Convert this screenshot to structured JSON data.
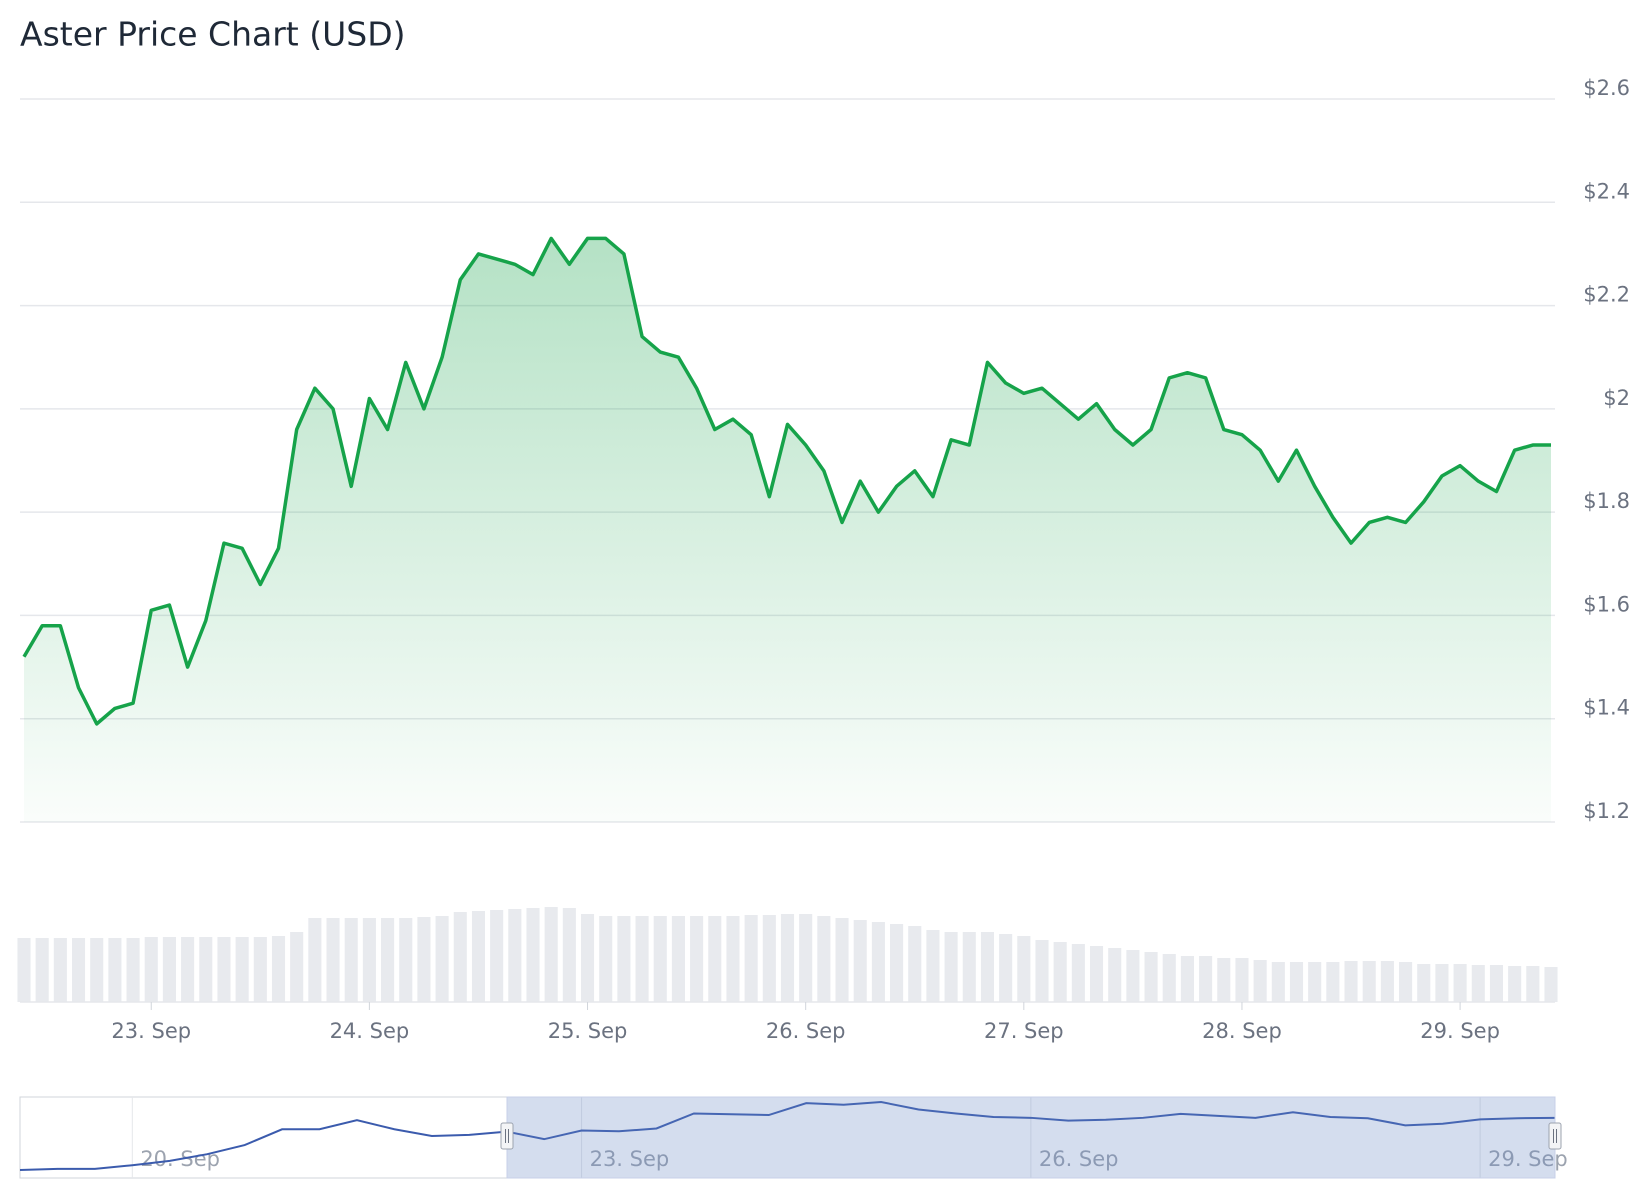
{
  "chart_data": [
    {
      "type": "area",
      "title": "Aster Price Chart (USD)",
      "color": "#16a34a",
      "categories": [
        null,
        null,
        null,
        null,
        null,
        null,
        null,
        "23. Sep",
        null,
        null,
        null,
        null,
        null,
        null,
        null,
        null,
        null,
        null,
        null,
        "24. Sep",
        null,
        null,
        null,
        null,
        null,
        null,
        null,
        null,
        null,
        null,
        null,
        "25. Sep",
        null,
        null,
        null,
        null,
        null,
        null,
        null,
        null,
        null,
        null,
        null,
        "26. Sep",
        null,
        null,
        null,
        null,
        null,
        null,
        null,
        null,
        null,
        null,
        null,
        "27. Sep",
        null,
        null,
        null,
        null,
        null,
        null,
        null,
        null,
        null,
        null,
        null,
        "28. Sep",
        null,
        null,
        null,
        null,
        null,
        null,
        null,
        null,
        null,
        null,
        null,
        "29. Sep",
        null,
        null,
        null,
        null,
        null
      ],
      "values": [
        1.52,
        1.58,
        1.58,
        1.46,
        1.39,
        1.42,
        1.43,
        1.61,
        1.62,
        1.5,
        1.59,
        1.74,
        1.73,
        1.66,
        1.73,
        1.96,
        2.04,
        2.0,
        1.85,
        2.02,
        1.96,
        2.09,
        2.0,
        2.1,
        2.25,
        2.3,
        2.29,
        2.28,
        2.26,
        2.33,
        2.28,
        2.33,
        2.33,
        2.3,
        2.14,
        2.11,
        2.1,
        2.04,
        1.96,
        1.98,
        1.95,
        1.83,
        1.97,
        1.93,
        1.88,
        1.78,
        1.86,
        1.8,
        1.85,
        1.88,
        1.83,
        1.94,
        1.93,
        2.09,
        2.05,
        2.03,
        2.04,
        2.01,
        1.98,
        2.01,
        1.96,
        1.93,
        1.96,
        2.06,
        2.07,
        2.06,
        1.96,
        1.95,
        1.92,
        1.86,
        1.92,
        1.85,
        1.79,
        1.74,
        1.78,
        1.79,
        1.78,
        1.82,
        1.87,
        1.89,
        1.86,
        1.84,
        1.92,
        1.93,
        1.93
      ],
      "volume": [
        64,
        64,
        64,
        64,
        64,
        64,
        64,
        65,
        65,
        65,
        65,
        65,
        65,
        65,
        66,
        70,
        84,
        84,
        84,
        84,
        84,
        84,
        85,
        86,
        90,
        91,
        92,
        93,
        94,
        95,
        94,
        88,
        86,
        86,
        86,
        86,
        86,
        86,
        86,
        86,
        87,
        87,
        88,
        88,
        86,
        84,
        82,
        80,
        78,
        76,
        72,
        70,
        70,
        70,
        68,
        66,
        62,
        60,
        58,
        56,
        54,
        52,
        50,
        48,
        46,
        46,
        44,
        44,
        42,
        40,
        40,
        40,
        40,
        41,
        41,
        41,
        40,
        38,
        38,
        38,
        37,
        37,
        36,
        36,
        35
      ],
      "ylim": [
        1.2,
        2.6
      ],
      "yticks": [
        {
          "value": 1.2,
          "label": "$1.2"
        },
        {
          "value": 1.4,
          "label": "$1.4"
        },
        {
          "value": 1.6,
          "label": "$1.6"
        },
        {
          "value": 1.8,
          "label": "$1.8"
        },
        {
          "value": 2,
          "label": "$2"
        },
        {
          "value": 2.2,
          "label": "$2.2"
        },
        {
          "value": 2.4,
          "label": "$2.4"
        },
        {
          "value": 2.6,
          "label": "$2.6"
        }
      ],
      "grid": true
    },
    {
      "type": "line",
      "color": "#3b5bad",
      "categories": [
        null,
        null,
        null,
        "20. Sep",
        null,
        null,
        null,
        null,
        null,
        null,
        null,
        null,
        null,
        null,
        null,
        "23. Sep",
        null,
        null,
        null,
        null,
        null,
        null,
        null,
        null,
        null,
        null,
        null,
        "26. Sep",
        null,
        null,
        null,
        null,
        null,
        null,
        null,
        null,
        null,
        null,
        null,
        "29. Sep",
        null,
        null
      ],
      "values": [
        0.61,
        0.64,
        0.64,
        0.73,
        0.84,
        1.01,
        1.24,
        1.64,
        1.64,
        1.87,
        1.64,
        1.47,
        1.5,
        1.58,
        1.39,
        1.61,
        1.59,
        1.66,
        2.04,
        2.02,
        2.0,
        2.3,
        2.26,
        2.33,
        2.14,
        2.04,
        1.95,
        1.93,
        1.86,
        1.88,
        1.93,
        2.03,
        1.98,
        1.93,
        2.07,
        1.95,
        1.92,
        1.74,
        1.78,
        1.89,
        1.92,
        1.93
      ]
    }
  ]
}
